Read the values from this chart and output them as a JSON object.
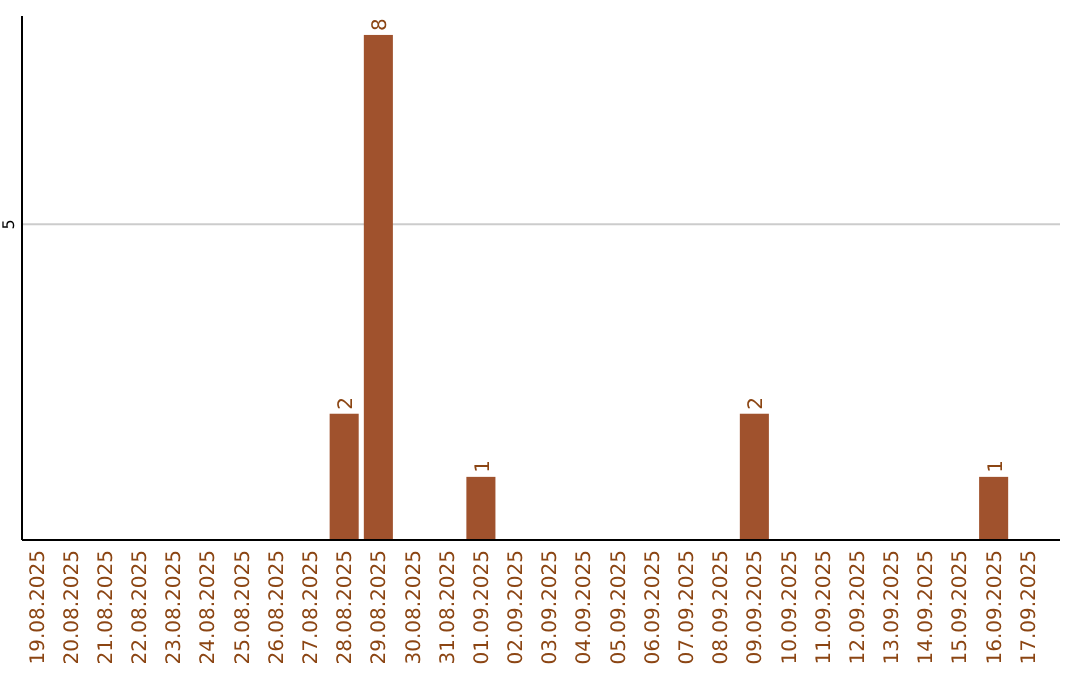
{
  "chart_data": {
    "type": "bar",
    "categories": [
      "19.08.2025",
      "20.08.2025",
      "21.08.2025",
      "22.08.2025",
      "23.08.2025",
      "24.08.2025",
      "25.08.2025",
      "26.08.2025",
      "27.08.2025",
      "28.08.2025",
      "29.08.2025",
      "30.08.2025",
      "31.08.2025",
      "01.09.2025",
      "02.09.2025",
      "03.09.2025",
      "04.09.2025",
      "05.09.2025",
      "06.09.2025",
      "07.09.2025",
      "08.09.2025",
      "09.09.2025",
      "10.09.2025",
      "11.09.2025",
      "12.09.2025",
      "13.09.2025",
      "14.09.2025",
      "15.09.2025",
      "16.09.2025",
      "17.09.2025"
    ],
    "values": [
      0,
      0,
      0,
      0,
      0,
      0,
      0,
      0,
      0,
      2,
      8,
      0,
      0,
      1,
      0,
      0,
      0,
      0,
      0,
      0,
      0,
      2,
      0,
      0,
      0,
      0,
      0,
      0,
      1,
      0
    ],
    "value_labels": [
      null,
      null,
      null,
      null,
      null,
      null,
      null,
      null,
      null,
      "2",
      "8",
      null,
      null,
      "1",
      null,
      null,
      null,
      null,
      null,
      null,
      null,
      "2",
      null,
      null,
      null,
      null,
      null,
      null,
      "1",
      null
    ],
    "color": "#a0522d",
    "ylim": [
      0,
      8.3
    ],
    "yticks": [
      5
    ],
    "grid": "y"
  }
}
